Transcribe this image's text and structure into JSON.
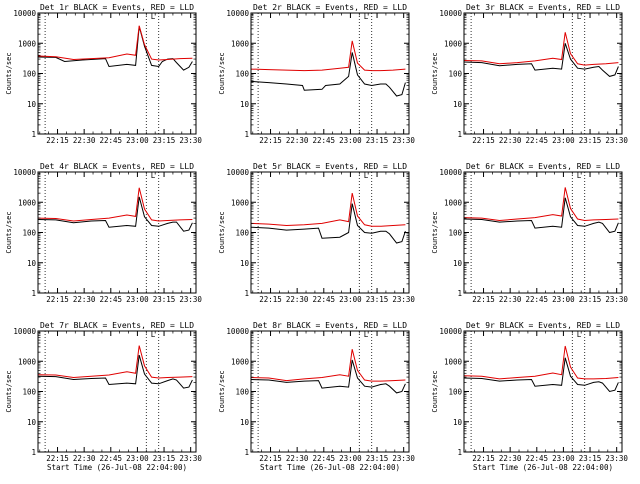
{
  "chart_data": [
    {
      "type": "line",
      "title": "Det 1r BLACK = Events, RED = LLD",
      "marker": "L",
      "xlabel": "",
      "ylabel": "Counts/sec",
      "yscale": "log",
      "ylim": [
        1,
        10000
      ],
      "x_ticks": [
        "22:15",
        "22:30",
        "22:45",
        "23:00",
        "23:15",
        "23:30"
      ],
      "y_ticks": [
        "1",
        "10",
        "100",
        "1000",
        "10000"
      ],
      "vlines_minutes": [
        4,
        61,
        68
      ],
      "series": [
        {
          "name": "Events",
          "color": "#000000",
          "x": [
            0,
            10,
            15,
            25,
            38,
            40,
            50,
            55,
            57,
            60,
            64,
            68,
            70,
            73,
            76,
            78,
            82,
            85,
            87
          ],
          "y": [
            350,
            340,
            250,
            280,
            310,
            170,
            200,
            185,
            3600,
            800,
            185,
            170,
            250,
            300,
            310,
            230,
            130,
            160,
            250
          ]
        },
        {
          "name": "LLD",
          "color": "#e00000",
          "x": [
            0,
            10,
            20,
            30,
            40,
            50,
            55,
            57,
            60,
            64,
            68,
            73,
            80,
            87
          ],
          "y": [
            380,
            360,
            290,
            310,
            330,
            440,
            400,
            3800,
            900,
            300,
            280,
            290,
            310,
            320
          ]
        }
      ]
    },
    {
      "type": "line",
      "title": "Det 2r BLACK = Events, RED = LLD",
      "marker": "L",
      "xlabel": "",
      "ylabel": "Counts/sec",
      "yscale": "log",
      "ylim": [
        1,
        10000
      ],
      "x_ticks": [
        "22:15",
        "22:30",
        "22:45",
        "23:00",
        "23:15",
        "23:30"
      ],
      "y_ticks": [
        "1",
        "10",
        "100",
        "1000",
        "10000"
      ],
      "vlines_minutes": [
        4,
        61,
        68
      ],
      "series": [
        {
          "name": "Events",
          "color": "#000000",
          "x": [
            0,
            10,
            20,
            29,
            30,
            40,
            42,
            50,
            55,
            57,
            60,
            64,
            68,
            73,
            76,
            78,
            82,
            85,
            87
          ],
          "y": [
            55,
            50,
            45,
            40,
            28,
            30,
            40,
            45,
            80,
            500,
            90,
            45,
            40,
            45,
            45,
            35,
            18,
            20,
            50
          ]
        },
        {
          "name": "LLD",
          "color": "#e00000",
          "x": [
            0,
            10,
            20,
            30,
            40,
            50,
            55,
            57,
            60,
            64,
            68,
            73,
            80,
            87
          ],
          "y": [
            140,
            135,
            130,
            125,
            130,
            150,
            160,
            1200,
            220,
            130,
            125,
            125,
            130,
            140
          ]
        }
      ]
    },
    {
      "type": "line",
      "title": "Det 3r BLACK = Events, RED = LLD",
      "marker": "L",
      "xlabel": "",
      "ylabel": "Counts/sec",
      "yscale": "log",
      "ylim": [
        1,
        10000
      ],
      "x_ticks": [
        "22:15",
        "22:30",
        "22:45",
        "23:00",
        "23:15",
        "23:30"
      ],
      "y_ticks": [
        "1",
        "10",
        "100",
        "1000",
        "10000"
      ],
      "vlines_minutes": [
        4,
        61,
        68
      ],
      "series": [
        {
          "name": "Events",
          "color": "#000000",
          "x": [
            0,
            10,
            20,
            30,
            38,
            40,
            50,
            55,
            57,
            60,
            64,
            68,
            73,
            76,
            78,
            82,
            85,
            87
          ],
          "y": [
            240,
            230,
            180,
            200,
            210,
            130,
            150,
            140,
            1000,
            300,
            150,
            140,
            160,
            170,
            130,
            80,
            90,
            170
          ]
        },
        {
          "name": "LLD",
          "color": "#e00000",
          "x": [
            0,
            10,
            20,
            30,
            40,
            50,
            55,
            57,
            60,
            64,
            68,
            73,
            80,
            87
          ],
          "y": [
            270,
            260,
            210,
            230,
            260,
            320,
            290,
            2300,
            450,
            210,
            190,
            200,
            210,
            230
          ]
        }
      ]
    },
    {
      "type": "line",
      "title": "Det 4r BLACK = Events, RED = LLD",
      "marker": "L",
      "xlabel": "",
      "ylabel": "Counts/sec",
      "yscale": "log",
      "ylim": [
        1,
        10000
      ],
      "x_ticks": [
        "22:15",
        "22:30",
        "22:45",
        "23:00",
        "23:15",
        "23:30"
      ],
      "y_ticks": [
        "1",
        "10",
        "100",
        "1000",
        "10000"
      ],
      "vlines_minutes": [
        4,
        61,
        68
      ],
      "series": [
        {
          "name": "Events",
          "color": "#000000",
          "x": [
            0,
            10,
            20,
            30,
            38,
            40,
            50,
            55,
            57,
            60,
            64,
            68,
            73,
            76,
            78,
            82,
            85,
            87
          ],
          "y": [
            270,
            260,
            210,
            240,
            250,
            150,
            170,
            160,
            1500,
            330,
            170,
            160,
            200,
            220,
            220,
            110,
            120,
            210
          ]
        },
        {
          "name": "LLD",
          "color": "#e00000",
          "x": [
            0,
            10,
            20,
            30,
            40,
            50,
            55,
            57,
            60,
            64,
            68,
            73,
            80,
            87
          ],
          "y": [
            300,
            290,
            240,
            270,
            300,
            380,
            340,
            3000,
            600,
            260,
            240,
            250,
            260,
            270
          ]
        }
      ]
    },
    {
      "type": "line",
      "title": "Det 5r BLACK = Events, RED = LLD",
      "marker": "L",
      "xlabel": "",
      "ylabel": "Counts/sec",
      "yscale": "log",
      "ylim": [
        1,
        10000
      ],
      "x_ticks": [
        "22:15",
        "22:30",
        "22:45",
        "23:00",
        "23:15",
        "23:30"
      ],
      "y_ticks": [
        "1",
        "10",
        "100",
        "1000",
        "10000"
      ],
      "vlines_minutes": [
        4,
        61,
        68
      ],
      "series": [
        {
          "name": "Events",
          "color": "#000000",
          "x": [
            0,
            10,
            20,
            30,
            38,
            40,
            50,
            55,
            57,
            60,
            64,
            68,
            73,
            76,
            78,
            82,
            85,
            87
          ],
          "y": [
            150,
            140,
            120,
            130,
            140,
            65,
            70,
            100,
            900,
            170,
            100,
            95,
            110,
            110,
            90,
            45,
            50,
            110
          ]
        },
        {
          "name": "LLD",
          "color": "#e00000",
          "x": [
            0,
            10,
            20,
            30,
            40,
            50,
            55,
            57,
            60,
            64,
            68,
            73,
            80,
            87
          ],
          "y": [
            200,
            190,
            170,
            180,
            200,
            260,
            230,
            2000,
            350,
            180,
            160,
            160,
            170,
            180
          ]
        }
      ]
    },
    {
      "type": "line",
      "title": "Det 6r BLACK = Events, RED = LLD",
      "marker": "L",
      "xlabel": "",
      "ylabel": "Counts/sec",
      "yscale": "log",
      "ylim": [
        1,
        10000
      ],
      "x_ticks": [
        "22:15",
        "22:30",
        "22:45",
        "23:00",
        "23:15",
        "23:30"
      ],
      "y_ticks": [
        "1",
        "10",
        "100",
        "1000",
        "10000"
      ],
      "vlines_minutes": [
        4,
        61,
        68
      ],
      "series": [
        {
          "name": "Events",
          "color": "#000000",
          "x": [
            0,
            10,
            20,
            30,
            38,
            40,
            50,
            55,
            57,
            60,
            64,
            68,
            73,
            76,
            78,
            82,
            85,
            87
          ],
          "y": [
            280,
            270,
            220,
            240,
            250,
            140,
            160,
            150,
            1400,
            330,
            170,
            160,
            200,
            220,
            200,
            100,
            110,
            210
          ]
        },
        {
          "name": "LLD",
          "color": "#e00000",
          "x": [
            0,
            10,
            20,
            30,
            40,
            50,
            55,
            57,
            60,
            64,
            68,
            73,
            80,
            87
          ],
          "y": [
            310,
            300,
            250,
            280,
            310,
            390,
            350,
            3100,
            620,
            280,
            250,
            260,
            270,
            280
          ]
        }
      ]
    },
    {
      "type": "line",
      "title": "Det 7r BLACK = Events, RED = LLD",
      "marker": "L",
      "xlabel": "Start Time (26-Jul-08 22:04:00)",
      "ylabel": "Counts/sec",
      "yscale": "log",
      "ylim": [
        1,
        10000
      ],
      "x_ticks": [
        "22:15",
        "22:30",
        "22:45",
        "23:00",
        "23:15",
        "23:30"
      ],
      "y_ticks": [
        "1",
        "10",
        "100",
        "1000",
        "10000"
      ],
      "vlines_minutes": [
        4,
        61,
        68
      ],
      "series": [
        {
          "name": "Events",
          "color": "#000000",
          "x": [
            0,
            10,
            20,
            30,
            38,
            40,
            50,
            55,
            57,
            60,
            64,
            68,
            73,
            76,
            78,
            82,
            85,
            87
          ],
          "y": [
            320,
            310,
            250,
            270,
            280,
            170,
            190,
            180,
            1600,
            380,
            190,
            180,
            230,
            260,
            240,
            130,
            140,
            240
          ]
        },
        {
          "name": "LLD",
          "color": "#e00000",
          "x": [
            0,
            10,
            20,
            30,
            40,
            50,
            55,
            57,
            60,
            64,
            68,
            73,
            80,
            87
          ],
          "y": [
            360,
            350,
            290,
            320,
            350,
            450,
            400,
            3300,
            700,
            300,
            280,
            290,
            300,
            310
          ]
        }
      ]
    },
    {
      "type": "line",
      "title": "Det 8r BLACK = Events, RED = LLD",
      "marker": "L",
      "xlabel": "Start Time (26-Jul-08 22:04:00)",
      "ylabel": "Counts/sec",
      "yscale": "log",
      "ylim": [
        1,
        10000
      ],
      "x_ticks": [
        "22:15",
        "22:30",
        "22:45",
        "23:00",
        "23:15",
        "23:30"
      ],
      "y_ticks": [
        "1",
        "10",
        "100",
        "1000",
        "10000"
      ],
      "vlines_minutes": [
        4,
        61,
        68
      ],
      "series": [
        {
          "name": "Events",
          "color": "#000000",
          "x": [
            0,
            10,
            20,
            30,
            38,
            40,
            50,
            55,
            57,
            60,
            64,
            68,
            73,
            76,
            78,
            82,
            85,
            87
          ],
          "y": [
            250,
            240,
            200,
            220,
            230,
            130,
            150,
            140,
            1100,
            280,
            150,
            140,
            170,
            180,
            150,
            90,
            100,
            180
          ]
        },
        {
          "name": "LLD",
          "color": "#e00000",
          "x": [
            0,
            10,
            20,
            30,
            40,
            50,
            55,
            57,
            60,
            64,
            68,
            73,
            80,
            87
          ],
          "y": [
            290,
            280,
            230,
            260,
            290,
            360,
            320,
            2500,
            500,
            240,
            220,
            220,
            230,
            240
          ]
        }
      ]
    },
    {
      "type": "line",
      "title": "Det 9r BLACK = Events, RED = LLD",
      "marker": "L",
      "xlabel": "Start Time (26-Jul-08 22:04:00)",
      "ylabel": "Counts/sec",
      "yscale": "log",
      "ylim": [
        1,
        10000
      ],
      "x_ticks": [
        "22:15",
        "22:30",
        "22:45",
        "23:00",
        "23:15",
        "23:30"
      ],
      "y_ticks": [
        "1",
        "10",
        "100",
        "1000",
        "10000"
      ],
      "vlines_minutes": [
        4,
        61,
        68
      ],
      "series": [
        {
          "name": "Events",
          "color": "#000000",
          "x": [
            0,
            10,
            20,
            30,
            38,
            40,
            50,
            55,
            57,
            60,
            64,
            68,
            73,
            76,
            78,
            82,
            85,
            87
          ],
          "y": [
            280,
            270,
            220,
            240,
            250,
            150,
            170,
            160,
            1300,
            320,
            170,
            160,
            200,
            210,
            190,
            100,
            110,
            200
          ]
        },
        {
          "name": "LLD",
          "color": "#e00000",
          "x": [
            0,
            10,
            20,
            30,
            40,
            50,
            55,
            57,
            60,
            64,
            68,
            73,
            80,
            87
          ],
          "y": [
            330,
            320,
            260,
            290,
            320,
            410,
            360,
            3200,
            640,
            280,
            260,
            260,
            270,
            290
          ]
        }
      ]
    }
  ]
}
